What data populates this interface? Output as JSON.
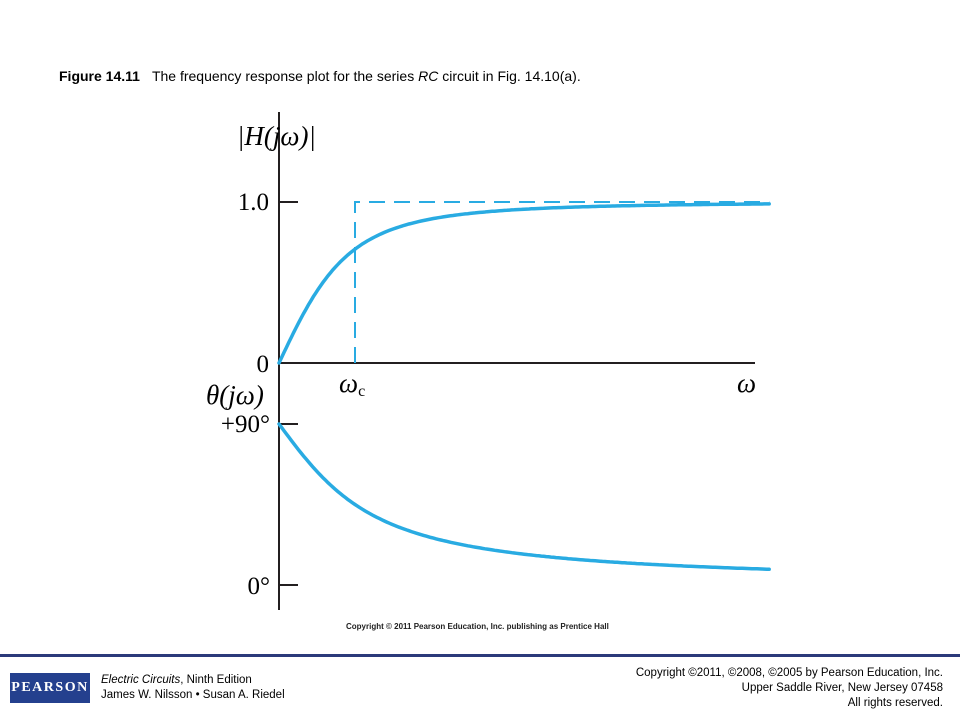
{
  "caption": {
    "number": "Figure 14.11",
    "text_prefix": "The frequency response plot for the series ",
    "text_italic": "RC",
    "text_suffix": " circuit in Fig. 14.10(a)."
  },
  "chart_data": [
    {
      "type": "line",
      "ylabel": "|H(jω)|",
      "xlabel": "ω",
      "x_tick_labels": [
        "ωc"
      ],
      "y_tick_labels": [
        "0",
        "1.0"
      ],
      "ylim": [
        0,
        1.0
      ],
      "series": [
        {
          "kind": "actual",
          "color": "#29abe2",
          "function": "ω/ωc / sqrt(1 + (ω/ωc)^2)"
        },
        {
          "kind": "ideal",
          "color": "#29abe2",
          "style": "dashed",
          "points": [
            [
              1,
              0
            ],
            [
              1,
              1.0
            ],
            [
              6.45,
              1.0
            ]
          ]
        }
      ],
      "x_range_relative_to_wc": [
        0,
        6.45
      ]
    },
    {
      "type": "line",
      "ylabel": "θ(jω)",
      "xlabel": "",
      "y_tick_labels": [
        "0°",
        "+90°"
      ],
      "ylim": [
        0,
        90
      ],
      "series": [
        {
          "kind": "phase",
          "color": "#29abe2",
          "function": "90° − arctan(ω/ωc)"
        }
      ]
    }
  ],
  "plot_labels": {
    "mag_axis": "|H(jω)|",
    "mag_tick_top": "1.0",
    "mag_tick_zero": "0",
    "wc": "ω",
    "wc_sub": "c",
    "w": "ω",
    "phase_axis": "θ(jω)",
    "phase_tick_top": "+90°",
    "phase_tick_zero": "0°"
  },
  "credit": "Copyright © 2011 Pearson Education, Inc. publishing as Prentice Hall",
  "footer": {
    "logo": "PEARSON",
    "book_title": "Electric Circuits",
    "book_edition": ", Ninth Edition",
    "authors": "James W. Nilsson • Susan A. Riedel",
    "copyright_line1": "Copyright ©2011, ©2008, ©2005 by Pearson Education, Inc.",
    "copyright_line2": "Upper Saddle River, New Jersey 07458",
    "copyright_line3": "All rights reserved."
  }
}
